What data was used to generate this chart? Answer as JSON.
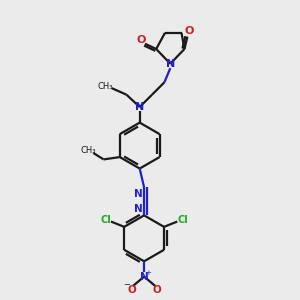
{
  "bg_color": "#ebebeb",
  "bond_color": "#1a1a1a",
  "N_color": "#2020cc",
  "O_color": "#cc2020",
  "Cl_color": "#20aa20",
  "fig_size": [
    3.0,
    3.0
  ],
  "dpi": 100,
  "xlim": [
    0,
    10
  ],
  "ylim": [
    0,
    10
  ]
}
